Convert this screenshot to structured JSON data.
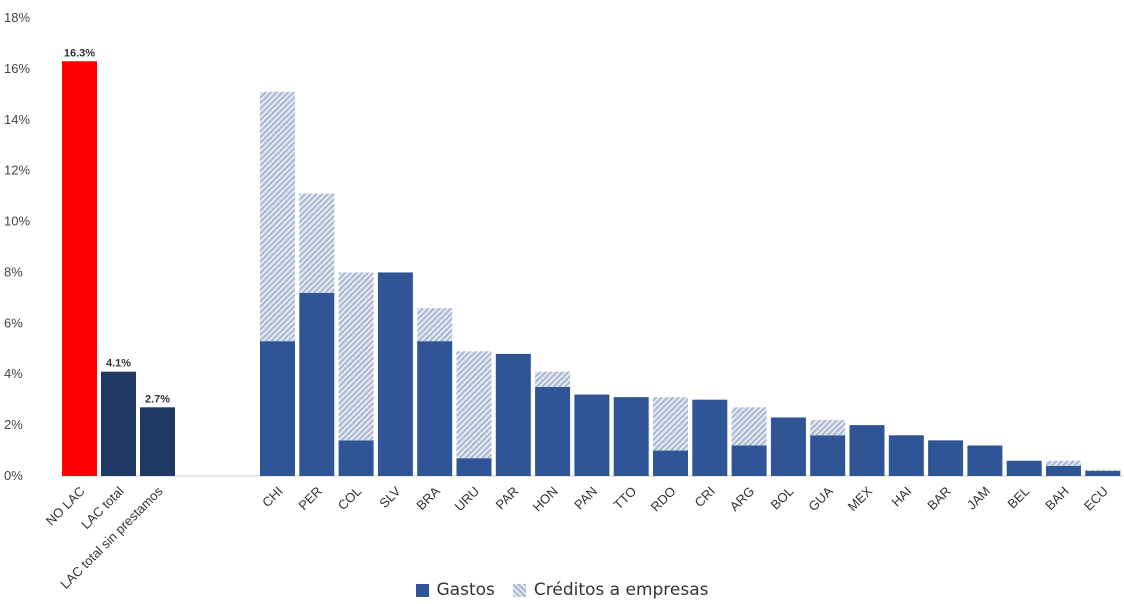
{
  "chart_data": {
    "type": "bar",
    "stacked": true,
    "ylim": [
      0,
      18
    ],
    "yticks": [
      "0%",
      "2%",
      "4%",
      "6%",
      "8%",
      "10%",
      "12%",
      "14%",
      "16%",
      "18%"
    ],
    "grid": false,
    "legend_position": "bottom",
    "groups": [
      {
        "categories": [
          "NO LAC",
          "LAC total",
          "LAC total sin prestamos"
        ],
        "values": [
          16.3,
          4.1,
          2.7
        ],
        "labels": [
          "16.3%",
          "4.1%",
          "2.7%"
        ],
        "colors": [
          "#ff0000",
          "#1f3864",
          "#1f3864"
        ]
      }
    ],
    "categories": [
      "CHI",
      "PER",
      "COL",
      "SLV",
      "BRA",
      "URU",
      "PAR",
      "HON",
      "PAN",
      "TTO",
      "RDO",
      "CRI",
      "ARG",
      "BOL",
      "GUA",
      "MEX",
      "HAI",
      "BAR",
      "JAM",
      "BEL",
      "BAH",
      "ECU"
    ],
    "series": [
      {
        "name": "Gastos",
        "color": "#2f5597",
        "values": [
          5.3,
          7.2,
          1.4,
          8.0,
          5.3,
          0.7,
          4.8,
          3.5,
          3.2,
          3.1,
          1.0,
          3.0,
          1.2,
          2.3,
          1.6,
          2.0,
          1.6,
          1.4,
          1.2,
          0.6,
          0.4,
          0.2
        ]
      },
      {
        "name": "Créditos a empresas",
        "color": "#a9b8d1",
        "values": [
          9.8,
          3.9,
          6.6,
          0.0,
          1.3,
          4.2,
          0.0,
          0.6,
          0.0,
          0.0,
          2.1,
          0.0,
          1.5,
          0.0,
          0.6,
          0.0,
          0.0,
          0.0,
          0.0,
          0.0,
          0.2,
          0.05
        ]
      }
    ]
  },
  "legend": [
    {
      "label": "Gastos",
      "style": "solid"
    },
    {
      "label": "Créditos a empresas",
      "style": "hatch"
    }
  ]
}
